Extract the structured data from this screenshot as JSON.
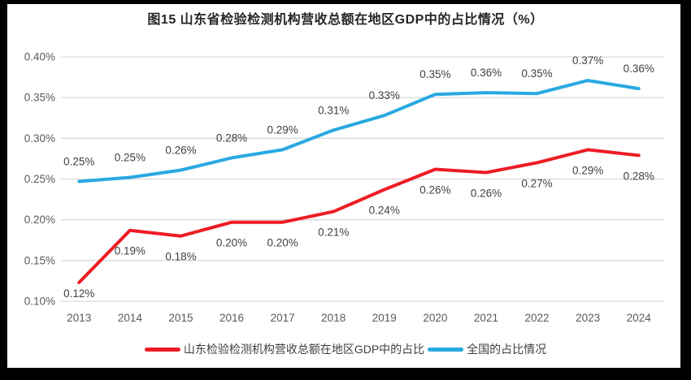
{
  "title": "图15  山东省检验检测机构营收总额在地区GDP中的占比情况（%）",
  "chart_data": {
    "type": "line",
    "title": "图15  山东省检验检测机构营收总额在地区GDP中的占比情况（%）",
    "categories": [
      "2013",
      "2014",
      "2015",
      "2016",
      "2017",
      "2018",
      "2019",
      "2020",
      "2021",
      "2022",
      "2023",
      "2024"
    ],
    "series": [
      {
        "name": "山东检验检测机构营收总额在地区GDP中的占比",
        "color": "#ED1C24",
        "values": [
          0.12,
          0.19,
          0.18,
          0.2,
          0.2,
          0.21,
          0.24,
          0.26,
          0.26,
          0.27,
          0.29,
          0.28
        ],
        "plot_values": [
          0.123,
          0.187,
          0.18,
          0.197,
          0.197,
          0.21,
          0.237,
          0.262,
          0.258,
          0.27,
          0.286,
          0.279
        ],
        "point_labels": [
          "0.12%",
          "0.19%",
          "0.18%",
          "0.20%",
          "0.20%",
          "0.21%",
          "0.24%",
          "0.26%",
          "0.26%",
          "0.27%",
          "0.29%",
          "0.28%"
        ],
        "label_position": "below"
      },
      {
        "name": "全国的占比情况",
        "color": "#29A9E0",
        "values": [
          0.25,
          0.25,
          0.26,
          0.28,
          0.29,
          0.31,
          0.33,
          0.35,
          0.36,
          0.35,
          0.37,
          0.36
        ],
        "plot_values": [
          0.247,
          0.252,
          0.261,
          0.276,
          0.286,
          0.31,
          0.328,
          0.354,
          0.356,
          0.355,
          0.371,
          0.361
        ],
        "point_labels": [
          "0.25%",
          "0.25%",
          "0.26%",
          "0.28%",
          "0.29%",
          "0.31%",
          "0.33%",
          "0.35%",
          "0.36%",
          "0.35%",
          "0.37%",
          "0.36%"
        ],
        "label_position": "above"
      }
    ],
    "yticks": [
      "0.10%",
      "0.15%",
      "0.20%",
      "0.25%",
      "0.30%",
      "0.35%",
      "0.40%"
    ],
    "ylim": [
      0.1,
      0.4
    ],
    "xlabel": "",
    "ylabel": "",
    "grid": true,
    "legend_position": "bottom"
  },
  "colors": {
    "grid": "#D9D9D9",
    "tick_text": "#595959",
    "data_label": "#404040",
    "title_text": "#262626",
    "frame": "#000000",
    "canvas": "#FFFFFF"
  }
}
